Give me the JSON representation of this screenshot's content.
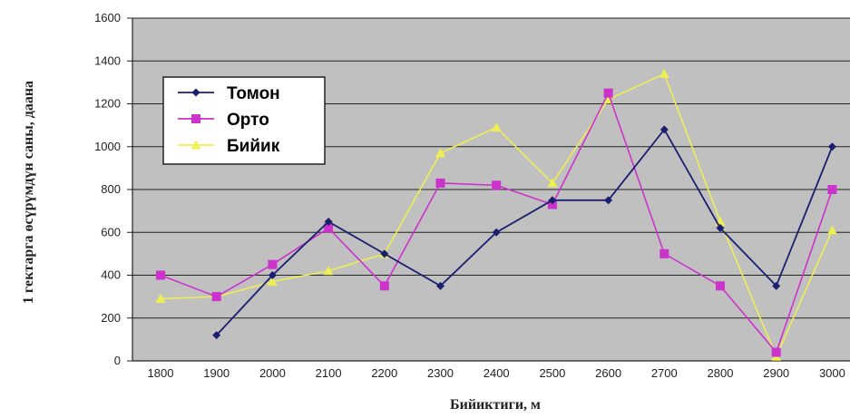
{
  "chart_data": {
    "type": "line",
    "title": "",
    "xlabel": "Бийиктиги, м",
    "ylabel": "1 гектарга өсүрүмдүн саны, даана",
    "categories": [
      "1800",
      "1900",
      "2000",
      "2100",
      "2200",
      "2300",
      "2400",
      "2500",
      "2600",
      "2700",
      "2800",
      "2900",
      "3000"
    ],
    "yticks": [
      "0",
      "200",
      "400",
      "600",
      "800",
      "1000",
      "1200",
      "1400",
      "1600"
    ],
    "ylim": [
      0,
      1600
    ],
    "grid": true,
    "legend_position": "top-left",
    "series": [
      {
        "name": "Томон",
        "color": "#1a1f6e",
        "marker": "diamond",
        "values": [
          null,
          120,
          400,
          650,
          500,
          350,
          600,
          750,
          750,
          1080,
          620,
          350,
          1000
        ]
      },
      {
        "name": "Орто",
        "color": "#cc33cc",
        "marker": "square",
        "values": [
          400,
          300,
          450,
          620,
          350,
          830,
          820,
          730,
          1250,
          500,
          350,
          40,
          800
        ]
      },
      {
        "name": "Бийик",
        "color": "#eeee55",
        "marker": "triangle",
        "values": [
          290,
          300,
          370,
          420,
          500,
          970,
          1090,
          830,
          1220,
          1340,
          650,
          20,
          610
        ]
      }
    ]
  }
}
